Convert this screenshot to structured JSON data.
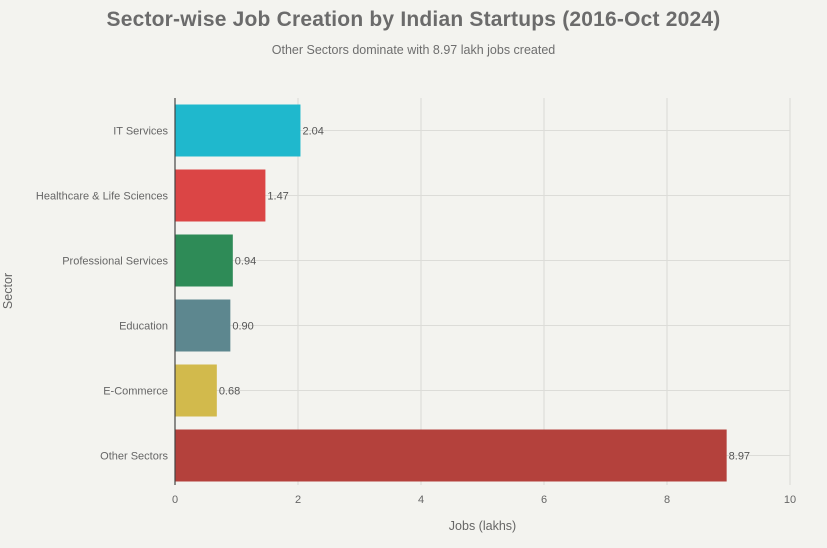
{
  "title": "Sector-wise Job Creation by Indian Startups (2016-Oct 2024)",
  "subtitle": "Other Sectors dominate with 8.97 lakh jobs created",
  "chart_data": {
    "type": "bar",
    "orientation": "horizontal",
    "title": "Sector-wise Job Creation by Indian Startups (2016-Oct 2024)",
    "subtitle": "Other Sectors dominate with 8.97 lakh jobs created",
    "xlabel": "Jobs (lakhs)",
    "ylabel": "Sector",
    "xlim": [
      0,
      10
    ],
    "xticks": [
      0,
      2,
      4,
      6,
      8,
      10
    ],
    "grid": true,
    "legend": "none",
    "categories": [
      "IT Services",
      "Healthcare & Life Sciences",
      "Professional Services",
      "Education",
      "E-Commerce",
      "Other Sectors"
    ],
    "values": [
      2.04,
      1.47,
      0.94,
      0.9,
      0.68,
      8.97
    ],
    "value_labels": [
      "2.04",
      "1.47",
      "0.94",
      "0.90",
      "0.68",
      "8.97"
    ],
    "colors": [
      "#1fb8cd",
      "#db4545",
      "#2e8b57",
      "#5d878f",
      "#d2ba4c",
      "#b4413c"
    ]
  }
}
